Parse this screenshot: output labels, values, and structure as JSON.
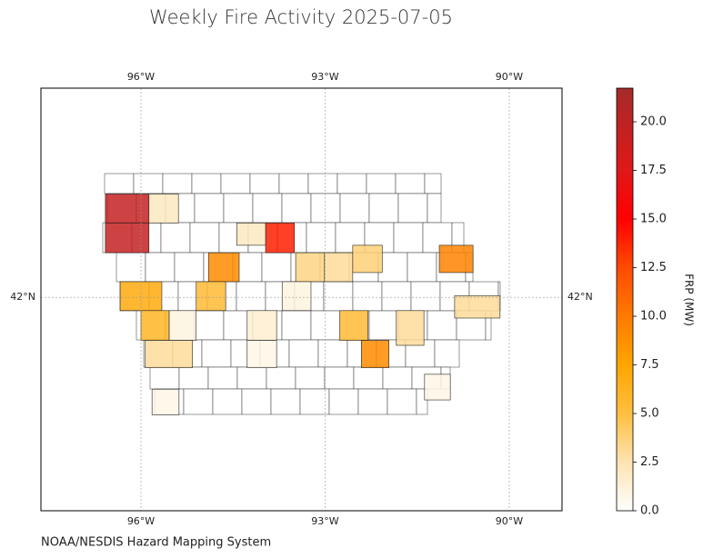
{
  "chart_data": {
    "type": "choropleth",
    "title": "Weekly Fire Activity 2025-07-05",
    "source": "NOAA/NESDIS Hazard Mapping System",
    "xlim": [
      -97.63,
      -89.14
    ],
    "ylim": [
      39.42,
      44.53
    ],
    "xticks": [
      {
        "value": -96,
        "label": "96°W"
      },
      {
        "value": -93,
        "label": "93°W"
      },
      {
        "value": -90,
        "label": "90°W"
      }
    ],
    "yticks": [
      {
        "value": 42,
        "label": "42°N"
      }
    ],
    "grid": true,
    "colorbar": {
      "label": "FRP (MW)",
      "clim": [
        0,
        21.73
      ],
      "ticks": [
        {
          "value": 0,
          "label": "0.0"
        },
        {
          "value": 2.5,
          "label": "2.5"
        },
        {
          "value": 5,
          "label": "5.0"
        },
        {
          "value": 7.5,
          "label": "7.5"
        },
        {
          "value": 10,
          "label": "10.0"
        },
        {
          "value": 12.5,
          "label": "12.5"
        },
        {
          "value": 15,
          "label": "15.0"
        },
        {
          "value": 17.5,
          "label": "17.5"
        },
        {
          "value": 20,
          "label": "20.0"
        }
      ],
      "colorscale": [
        [
          0,
          "#ffffff"
        ],
        [
          2.5,
          "#fde3b0"
        ],
        [
          5,
          "#ffbf40"
        ],
        [
          7.5,
          "#ffa500"
        ],
        [
          10,
          "#ff7a00"
        ],
        [
          12.5,
          "#ff4a00"
        ],
        [
          15,
          "#ff0000"
        ],
        [
          17.5,
          "#e01818"
        ],
        [
          21.73,
          "#a52a2a"
        ]
      ]
    },
    "regions": [
      {
        "lon": [
          -96.58,
          -95.87
        ],
        "lat": [
          43.25,
          42.9
        ],
        "frp": 19.5
      },
      {
        "lon": [
          -96.58,
          -95.87
        ],
        "lat": [
          42.9,
          42.54
        ],
        "frp": 19.5
      },
      {
        "lon": [
          -95.87,
          -95.39
        ],
        "lat": [
          43.25,
          42.9
        ],
        "frp": 2
      },
      {
        "lon": [
          -93.97,
          -93.5
        ],
        "lat": [
          42.9,
          42.54
        ],
        "frp": 14
      },
      {
        "lon": [
          -94.44,
          -93.97
        ],
        "lat": [
          42.9,
          42.63
        ],
        "frp": 2
      },
      {
        "lon": [
          -94.9,
          -94.4
        ],
        "lat": [
          42.54,
          42.19
        ],
        "frp": 9
      },
      {
        "lon": [
          -93.48,
          -93.01
        ],
        "lat": [
          42.54,
          42.19
        ],
        "frp": 3.5
      },
      {
        "lon": [
          -93.01,
          -92.55
        ],
        "lat": [
          42.54,
          42.19
        ],
        "frp": 3
      },
      {
        "lon": [
          -92.55,
          -92.07
        ],
        "lat": [
          42.63,
          42.3
        ],
        "frp": 3.8
      },
      {
        "lon": [
          -91.14,
          -90.59
        ],
        "lat": [
          42.63,
          42.3
        ],
        "frp": 9.5
      },
      {
        "lon": [
          -96.34,
          -95.66
        ],
        "lat": [
          42.19,
          41.84
        ],
        "frp": 7
      },
      {
        "lon": [
          -95.1,
          -94.62
        ],
        "lat": [
          42.19,
          41.84
        ],
        "frp": 5.5
      },
      {
        "lon": [
          -93.7,
          -93.23
        ],
        "lat": [
          42.19,
          41.84
        ],
        "frp": 1
      },
      {
        "lon": [
          -90.89,
          -90.15
        ],
        "lat": [
          42.02,
          41.75
        ],
        "frp": 3
      },
      {
        "lon": [
          -96.0,
          -95.54
        ],
        "lat": [
          41.84,
          41.48
        ],
        "frp": 6
      },
      {
        "lon": [
          -95.54,
          -95.1
        ],
        "lat": [
          41.84,
          41.48
        ],
        "frp": 1
      },
      {
        "lon": [
          -94.27,
          -93.79
        ],
        "lat": [
          41.84,
          41.48
        ],
        "frp": 1.5
      },
      {
        "lon": [
          -92.76,
          -92.3
        ],
        "lat": [
          41.84,
          41.48
        ],
        "frp": 5.5
      },
      {
        "lon": [
          -91.84,
          -91.39
        ],
        "lat": [
          41.84,
          41.42
        ],
        "frp": 3
      },
      {
        "lon": [
          -95.93,
          -95.16
        ],
        "lat": [
          41.48,
          41.15
        ],
        "frp": 3
      },
      {
        "lon": [
          -94.27,
          -93.79
        ],
        "lat": [
          41.48,
          41.15
        ],
        "frp": 0.8
      },
      {
        "lon": [
          -92.41,
          -91.96
        ],
        "lat": [
          41.48,
          41.15
        ],
        "frp": 9
      },
      {
        "lon": [
          -95.82,
          -95.38
        ],
        "lat": [
          40.89,
          40.58
        ],
        "frp": 0.8
      },
      {
        "lon": [
          -91.38,
          -90.96
        ],
        "lat": [
          41.07,
          40.76
        ],
        "frp": 0.8
      }
    ]
  }
}
